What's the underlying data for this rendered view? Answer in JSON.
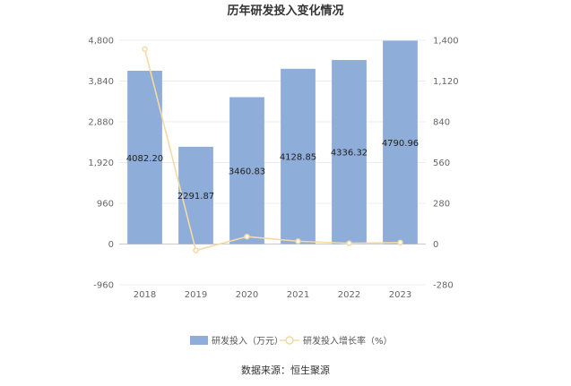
{
  "chart_data": {
    "type": "bar",
    "title": "历年研发投入变化情况",
    "categories": [
      "2018",
      "2019",
      "2020",
      "2021",
      "2022",
      "2023"
    ],
    "series": [
      {
        "name": "研发投入（万元）",
        "type": "bar",
        "axis": "left",
        "values": [
          4082.2,
          2291.87,
          3460.83,
          4128.85,
          4336.32,
          4790.96
        ],
        "labels": [
          "4082.20",
          "2291.87",
          "3460.83",
          "4128.85",
          "4336.32",
          "4790.96"
        ],
        "color": "#8eadd9"
      },
      {
        "name": "研发投入增长率（%）",
        "type": "line",
        "axis": "right",
        "values": [
          1340,
          -43.86,
          51.0,
          19.3,
          5.02,
          10.49
        ],
        "color": "#f5d9a6"
      }
    ],
    "y_left": {
      "min": -960,
      "max": 4800,
      "ticks": [
        "-960",
        "0",
        "960",
        "1,920",
        "2,880",
        "3,840",
        "4,800"
      ],
      "tick_values": [
        -960,
        0,
        960,
        1920,
        2880,
        3840,
        4800
      ]
    },
    "y_right": {
      "min": -280,
      "max": 1400,
      "ticks": [
        "-280",
        "0",
        "280",
        "560",
        "840",
        "1,120",
        "1,400"
      ],
      "tick_values": [
        -280,
        0,
        280,
        560,
        840,
        1120,
        1400
      ]
    },
    "grid": true,
    "legend": "bottom",
    "source": "数据来源：恒生聚源"
  }
}
